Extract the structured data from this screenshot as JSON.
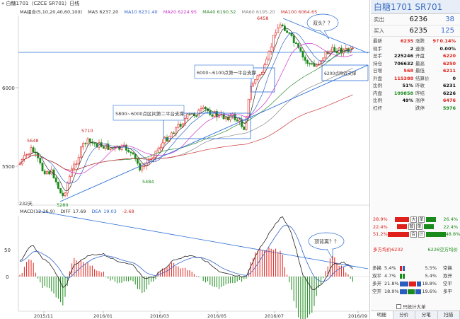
{
  "title_bar": {
    "text": "白糖1701（CZCE SR701）日线"
  },
  "ma_bar": {
    "label": "MA组合(5,10,20,40,60,100)",
    "ma5": "MA5 6237.20",
    "ma10": "MA10 6231.40",
    "ma20": "MA20 6224.95",
    "ma40": "MA40 6190.52",
    "ma60": "MA60 6195.20",
    "ma100": "MA100 6064.65"
  },
  "macd_bar": {
    "label": "MACD(12,26,9)",
    "diff_label": "DIFF",
    "diff": "17.69",
    "dea_label": "DEA",
    "dea": "19.03",
    "macd": "-2.68"
  },
  "price_axis": {
    "y6000": "6000",
    "y5500": "5500"
  },
  "macd_axis": {
    "y50": "50",
    "y0": "0"
  },
  "date_axis": [
    "2015/11",
    "2016/01",
    "2016/03",
    "2016/05",
    "2016/07",
    "2016/09"
  ],
  "price_markers": {
    "high": "6458",
    "p5710": "5710",
    "p5648": "5648",
    "p5484": "5484",
    "p5280": "5280",
    "days": "232天"
  },
  "annotations": {
    "a1": "5800~6000点区间第二平台支撑",
    "a2": "6000~6100点第一平台支撑",
    "a3": "6200点附近支撑",
    "a4": "双头？？",
    "a5": "顶背离？？"
  },
  "colors": {
    "up": "#e0201b",
    "down": "#1a8a1a",
    "ma5": "#333333",
    "ma10": "#3366cc",
    "ma20": "#cc33cc",
    "ma40": "#338833",
    "ma60": "#888888",
    "ma100": "#cc3333",
    "trend": "#2a6fd6"
  },
  "quote_panel": {
    "header": "白糖1701  SR701",
    "ask": {
      "label": "卖出",
      "price": "6236",
      "volume": "38"
    },
    "bid": {
      "label": "买入",
      "price": "6235",
      "volume": "125"
    },
    "stats": [
      [
        {
          "k": "最新",
          "v": "6235",
          "c": "red"
        },
        {
          "k": "涨跌",
          "v": "9↑0.14%",
          "c": "red"
        }
      ],
      [
        {
          "k": "现手",
          "v": "2",
          "c": "black"
        },
        {
          "k": "速涨",
          "v": "0.00%",
          "c": "black"
        }
      ],
      [
        {
          "k": "总手",
          "v": "225246",
          "c": "black"
        },
        {
          "k": "开盘",
          "v": "6220",
          "c": "red"
        }
      ],
      [
        {
          "k": "持仓",
          "v": "706632",
          "c": "black"
        },
        {
          "k": "最高",
          "v": "6250",
          "c": "red"
        }
      ],
      [
        {
          "k": "日增",
          "v": "568",
          "c": "red"
        },
        {
          "k": "最低",
          "v": "6211",
          "c": "red"
        }
      ],
      [
        {
          "k": "外盘",
          "v": "115388",
          "c": "red"
        },
        {
          "k": "结算价",
          "v": "0",
          "c": "black"
        }
      ],
      [
        {
          "k": "比例",
          "v": "51%",
          "c": "black"
        },
        {
          "k": "昨收",
          "v": "6231",
          "c": "black"
        }
      ],
      [
        {
          "k": "内盘",
          "v": "109858",
          "c": "green"
        },
        {
          "k": "昨结",
          "v": "6226",
          "c": "black"
        }
      ],
      [
        {
          "k": "比例",
          "v": "49%",
          "c": "black"
        },
        {
          "k": "涨停",
          "v": "6476",
          "c": "red"
        }
      ],
      [
        {
          "k": "杠杆",
          "v": "",
          "c": "black"
        },
        {
          "k": "跌停",
          "v": "5976",
          "c": "green"
        }
      ]
    ],
    "flow": [
      {
        "left": "28.9%",
        "tag": "大",
        "right_tag": "单",
        "right": "26.4%",
        "lb": 20,
        "rb": 14
      },
      {
        "left": "22.4%",
        "tag": "散",
        "right_tag": "单",
        "right": "22.4%",
        "lb": 14,
        "rb": 14
      },
      {
        "left": "51.2%",
        "tag": "合",
        "right_tag": "计",
        "right": "48.8%",
        "lb": 30,
        "rb": 28
      }
    ],
    "avg": {
      "left": "多方均价6232",
      "right": "6226空方均价"
    },
    "positions": [
      {
        "lab": "多换",
        "val": "5.4%",
        "val2": "5.5%",
        "lab2": "空换"
      },
      {
        "lab": "双平",
        "val": "4.7%",
        "val2": "5.4%",
        "lab2": "双开"
      },
      {
        "lab": "多开",
        "val": "21.8%",
        "val2": "18.8%",
        "lab2": "空平"
      },
      {
        "lab": "空开",
        "val": "18.9%",
        "val2": "19.6%",
        "lab2": "多平"
      }
    ],
    "only_stat": "只统计大单",
    "tabs": [
      "明细",
      "分价",
      "分笔",
      "扫描"
    ]
  }
}
